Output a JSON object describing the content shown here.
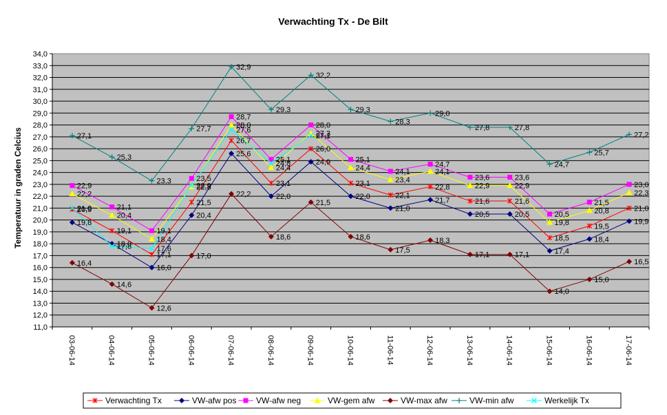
{
  "chart_data": {
    "type": "line",
    "title": "Verwachting Tx - De Bilt",
    "xlabel": "",
    "ylabel": "Temperatuur in graden Celcius",
    "ylim": [
      11,
      34
    ],
    "ytick_step": 1,
    "ytick_labels": [
      "11,0",
      "12,0",
      "13,0",
      "14,0",
      "15,0",
      "16,0",
      "17,0",
      "18,0",
      "19,0",
      "20,0",
      "21,0",
      "22,0",
      "23,0",
      "24,0",
      "25,0",
      "26,0",
      "27,0",
      "28,0",
      "29,0",
      "30,0",
      "31,0",
      "32,0",
      "33,0",
      "34,0"
    ],
    "grid": true,
    "plot_background": "#c0c0c0",
    "legend_position": "bottom",
    "categories": [
      "03-06-14",
      "04-06-14",
      "05-06-14",
      "06-06-14",
      "07-06-14",
      "08-06-14",
      "09-06-14",
      "10-06-14",
      "11-06-14",
      "12-06-14",
      "13-06-14",
      "14-06-14",
      "15-06-14",
      "16-06-14",
      "17-06-14"
    ],
    "series": [
      {
        "name": "Verwachting Tx",
        "color": "#ff0000",
        "marker": "star",
        "values": [
          20.9,
          19.1,
          17.1,
          21.5,
          26.7,
          23.1,
          26.0,
          23.1,
          22.1,
          22.8,
          21.6,
          21.6,
          18.5,
          19.5,
          21.0
        ],
        "labels": [
          "20,9",
          "19,1",
          "17,1",
          "21,5",
          "26,7",
          "23,1",
          "26,0",
          "23,1",
          "22,1",
          "22,8",
          "21,6",
          "21,6",
          "18,5",
          "19,5",
          "21,0"
        ]
      },
      {
        "name": "VW-afw pos",
        "color": "#000080",
        "marker": "diamond",
        "values": [
          19.8,
          18.0,
          16.0,
          20.4,
          25.6,
          22.0,
          24.9,
          22.0,
          21.0,
          21.7,
          20.5,
          20.5,
          17.4,
          18.4,
          19.9
        ],
        "labels": [
          "19,8",
          "18,0",
          "16,0",
          "20,4",
          "25,6",
          "22,0",
          "24,9",
          "22,0",
          "21,0",
          "21,7",
          "20,5",
          "20,5",
          "17,4",
          "18,4",
          "19,9"
        ]
      },
      {
        "name": "VW-afw neg",
        "color": "#ff00ff",
        "marker": "square",
        "values": [
          22.9,
          21.1,
          19.1,
          23.5,
          28.7,
          25.1,
          28.0,
          25.1,
          24.1,
          24.7,
          23.6,
          23.6,
          20.5,
          21.5,
          23.0
        ],
        "labels": [
          "22,9",
          "21,1",
          "19,1",
          "23,5",
          "28,7",
          "25,1",
          "28,0",
          "25,1",
          "24,1",
          "24,7",
          "23,6",
          "23,6",
          "20,5",
          "21,5",
          "23,0"
        ]
      },
      {
        "name": "VW-gem afw",
        "color": "#ffff00",
        "marker": "triangle",
        "values": [
          22.2,
          20.4,
          18.4,
          22.8,
          28.0,
          24.4,
          27.3,
          24.4,
          23.4,
          24.1,
          22.9,
          22.9,
          19.8,
          20.8,
          22.3
        ],
        "labels": [
          "22,2",
          "20,4",
          "18,4",
          "22,8",
          "28,0",
          "24,4",
          "27,3",
          "24,4",
          "23,4",
          "24,1",
          "22,9",
          "22,9",
          "19,8",
          "20,8",
          "22,3"
        ]
      },
      {
        "name": "VW-max afw",
        "color": "#800000",
        "marker": "diamond",
        "values": [
          16.4,
          14.6,
          12.6,
          17.0,
          22.2,
          18.6,
          21.5,
          18.6,
          17.5,
          18.3,
          17.1,
          17.1,
          14.0,
          15.0,
          16.5
        ],
        "labels": [
          "16,4",
          "14,6",
          "12,6",
          "17,0",
          "22,2",
          "18,6",
          "21,5",
          "18,6",
          "17,5",
          "18,3",
          "17,1",
          "17,1",
          "14,0",
          "15,0",
          "16,5"
        ]
      },
      {
        "name": "VW-min afw",
        "color": "#008080",
        "marker": "plus",
        "values": [
          27.1,
          25.3,
          23.3,
          27.7,
          32.9,
          29.3,
          32.2,
          29.3,
          28.3,
          29.0,
          27.8,
          27.8,
          24.7,
          25.7,
          27.2
        ],
        "labels": [
          "27,1",
          "25,3",
          "23,3",
          "27,7",
          "32,9",
          "29,3",
          "32,2",
          "29,3",
          "28,3",
          "29,0",
          "27,8",
          "27,8",
          "24,7",
          "25,7",
          "27,2"
        ]
      },
      {
        "name": "Werkelijk Tx",
        "color": "#00ffff",
        "marker": "x",
        "values": [
          21.0,
          17.8,
          17.6,
          22.9,
          27.6,
          24.8,
          27.1,
          null,
          null,
          null,
          null,
          null,
          null,
          null,
          null
        ],
        "labels": [
          "21,0",
          "17,8",
          "17,6",
          "22,9",
          "27,6",
          "24,8",
          "27,1"
        ]
      }
    ]
  }
}
